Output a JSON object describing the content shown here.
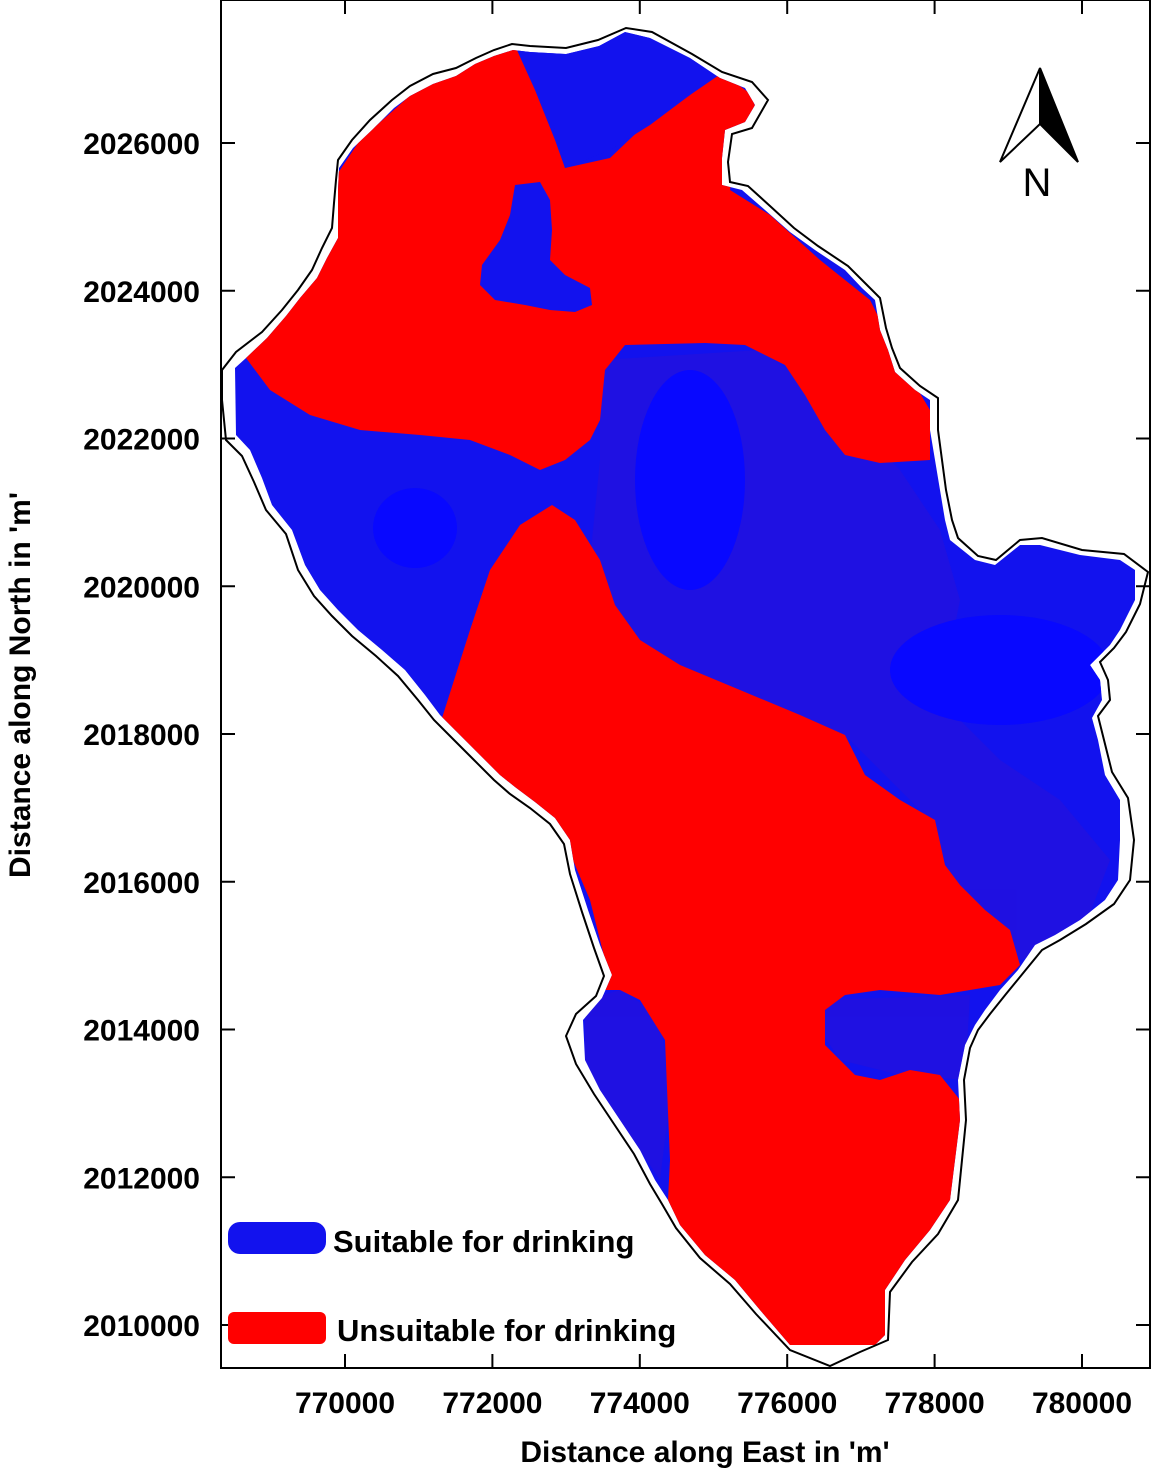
{
  "map": {
    "x_axis_title": "Distance along East in 'm'",
    "y_axis_title": "Distance along North in 'm'",
    "x_ticks": [
      "770000",
      "772000",
      "774000",
      "776000",
      "778000",
      "780000"
    ],
    "y_ticks": [
      "2026000",
      "2024000",
      "2022000",
      "2020000",
      "2018000",
      "2016000",
      "2014000",
      "2012000",
      "2010000"
    ],
    "north_label": "N",
    "legend": [
      {
        "label": "Suitable for drinking",
        "color": "#1212ee"
      },
      {
        "label": "Unsuitable for drinking",
        "color": "#ff0000"
      }
    ]
  }
}
